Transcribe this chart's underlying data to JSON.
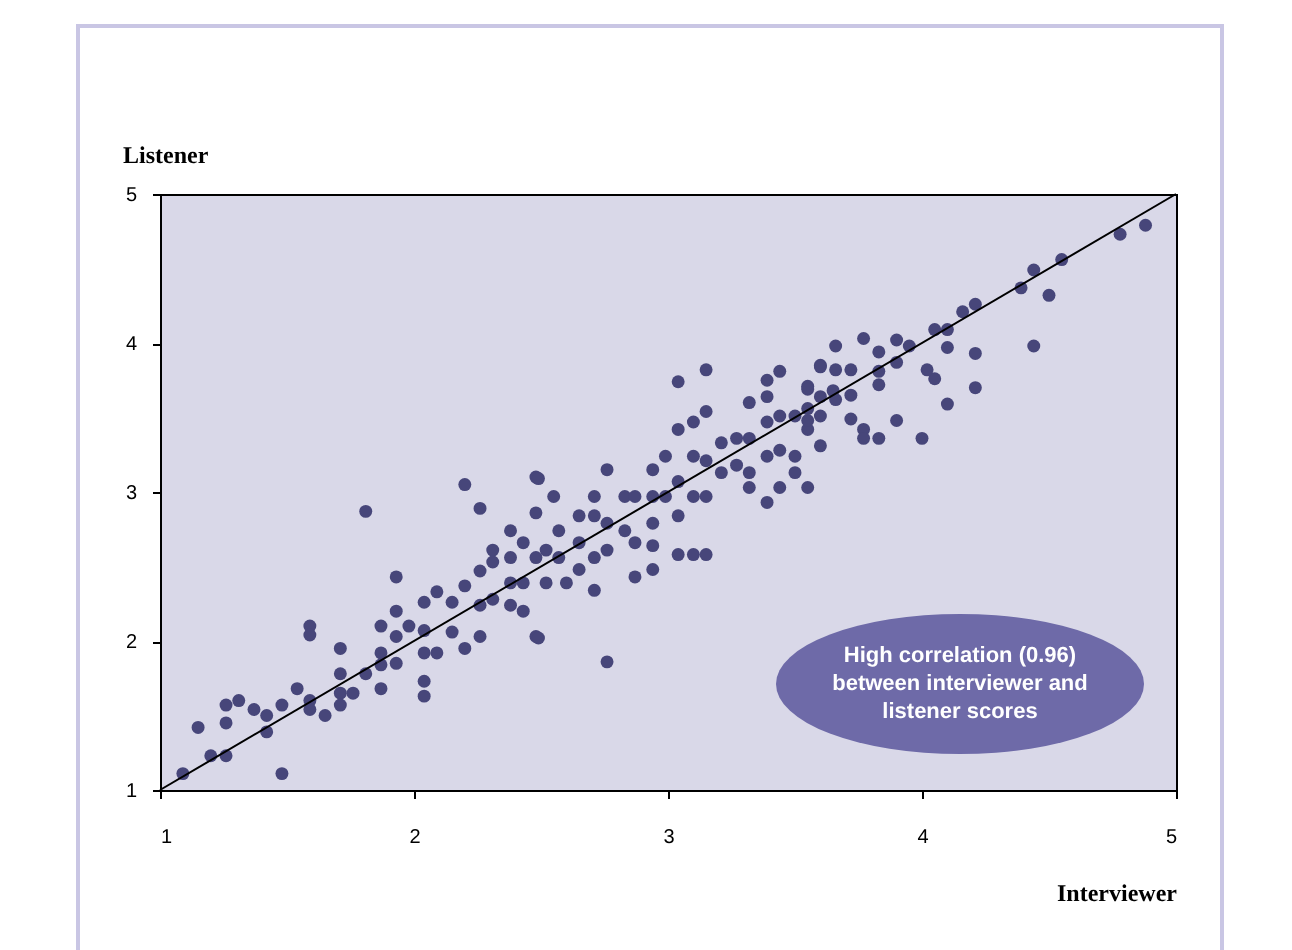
{
  "chart_data": {
    "type": "scatter",
    "xlabel": "Interviewer",
    "ylabel": "Listener",
    "annotations": [
      "High correlation (0.96) between interviewer and listener scores"
    ],
    "xlim": [
      1,
      5
    ],
    "ylim": [
      1,
      5
    ],
    "xticks": [
      1,
      2,
      3,
      4,
      5
    ],
    "yticks": [
      1,
      2,
      3,
      4,
      5
    ],
    "grid": false,
    "series": [
      {
        "marker": "circle",
        "color": "#47467a",
        "x": [
          1.09,
          1.15,
          1.2,
          1.26,
          1.26,
          1.26,
          1.31,
          1.37,
          1.42,
          1.42,
          1.48,
          1.48,
          1.54,
          1.59,
          1.59,
          1.59,
          1.59,
          1.65,
          1.71,
          1.71,
          1.71,
          1.71,
          1.76,
          1.81,
          1.81,
          1.87,
          1.87,
          1.87,
          1.87,
          1.93,
          1.93,
          1.93,
          1.93,
          1.98,
          2.04,
          2.04,
          2.04,
          2.04,
          2.04,
          2.09,
          2.09,
          2.15,
          2.15,
          2.2,
          2.2,
          2.2,
          2.26,
          2.26,
          2.26,
          2.26,
          2.31,
          2.31,
          2.38,
          2.38,
          2.38,
          2.38,
          2.43,
          2.43,
          2.48,
          2.48,
          2.48,
          2.48,
          2.76,
          2.49,
          2.49,
          2.55,
          2.76,
          2.71,
          2.71,
          2.65,
          2.65,
          2.71,
          2.57,
          2.57,
          2.52,
          2.52,
          2.6,
          2.65,
          2.71,
          2.43,
          2.31,
          2.76,
          2.76,
          2.83,
          2.83,
          2.87,
          2.87,
          2.87,
          2.94,
          2.94,
          2.94,
          2.94,
          2.94,
          2.99,
          2.99,
          3.04,
          3.04,
          3.04,
          3.04,
          3.04,
          3.1,
          3.1,
          3.1,
          3.1,
          3.15,
          3.15,
          3.15,
          3.15,
          3.15,
          3.21,
          3.21,
          3.27,
          3.27,
          3.32,
          3.32,
          3.32,
          3.32,
          3.39,
          3.39,
          3.39,
          3.39,
          3.39,
          3.44,
          3.44,
          3.44,
          3.44,
          3.5,
          3.5,
          3.5,
          3.55,
          3.55,
          3.55,
          3.55,
          3.6,
          3.6,
          3.6,
          3.65,
          3.72,
          3.66,
          4.78,
          4.88,
          4.55,
          4.44,
          4.39,
          4.5,
          4.44,
          4.21,
          4.16,
          4.21,
          4.21,
          4.1,
          4.1,
          4.1,
          4.05,
          4.05,
          4.02,
          4.0,
          3.95,
          3.9,
          3.9,
          3.9,
          3.83,
          3.83,
          3.83,
          3.83,
          3.77,
          3.77,
          3.77,
          3.72,
          3.72,
          3.66,
          3.66,
          3.6,
          3.6,
          3.55,
          3.55
        ],
        "values": [
          1.11,
          1.42,
          1.23,
          1.23,
          1.45,
          1.57,
          1.6,
          1.54,
          1.5,
          1.39,
          1.57,
          1.11,
          1.68,
          1.6,
          2.1,
          2.04,
          1.54,
          1.5,
          1.95,
          1.78,
          1.65,
          1.57,
          1.65,
          2.87,
          1.78,
          1.68,
          2.1,
          1.92,
          1.84,
          2.43,
          2.2,
          2.03,
          1.85,
          2.1,
          2.26,
          2.07,
          1.92,
          1.73,
          1.63,
          2.33,
          1.92,
          2.26,
          2.06,
          3.05,
          2.37,
          1.95,
          2.89,
          2.47,
          2.24,
          2.03,
          2.61,
          2.28,
          2.74,
          2.56,
          2.39,
          2.24,
          2.2,
          2.39,
          3.1,
          2.86,
          2.56,
          2.03,
          1.86,
          2.02,
          3.09,
          2.97,
          3.15,
          2.97,
          2.84,
          2.84,
          2.66,
          2.56,
          2.74,
          2.56,
          2.61,
          2.39,
          2.39,
          2.48,
          2.34,
          2.66,
          2.53,
          2.79,
          2.61,
          2.97,
          2.74,
          2.97,
          2.66,
          2.43,
          2.97,
          2.79,
          2.64,
          2.48,
          3.15,
          3.24,
          2.97,
          3.74,
          3.42,
          3.07,
          2.84,
          2.58,
          3.47,
          3.24,
          2.97,
          2.58,
          3.82,
          3.54,
          3.21,
          2.97,
          2.58,
          3.33,
          3.13,
          3.36,
          3.18,
          3.6,
          3.36,
          3.13,
          3.03,
          3.75,
          3.64,
          3.47,
          3.24,
          2.93,
          3.81,
          3.51,
          3.28,
          3.03,
          3.51,
          3.24,
          3.13,
          3.71,
          3.56,
          3.42,
          3.03,
          3.85,
          3.51,
          3.31,
          3.68,
          3.49,
          3.98,
          4.73,
          4.79,
          4.56,
          4.49,
          4.37,
          4.32,
          3.98,
          4.26,
          4.21,
          3.93,
          3.7,
          4.09,
          3.97,
          3.59,
          4.09,
          3.76,
          3.82,
          3.36,
          3.98,
          4.02,
          3.87,
          3.48,
          3.94,
          3.81,
          3.72,
          3.36,
          4.03,
          3.42,
          3.36,
          3.82,
          3.65,
          3.82,
          3.62,
          3.84,
          3.64,
          3.69,
          3.48
        ]
      },
      {
        "type": "line",
        "marker": "none",
        "color": "#000000",
        "x": [
          1,
          5
        ],
        "values": [
          1,
          5
        ]
      }
    ]
  }
}
